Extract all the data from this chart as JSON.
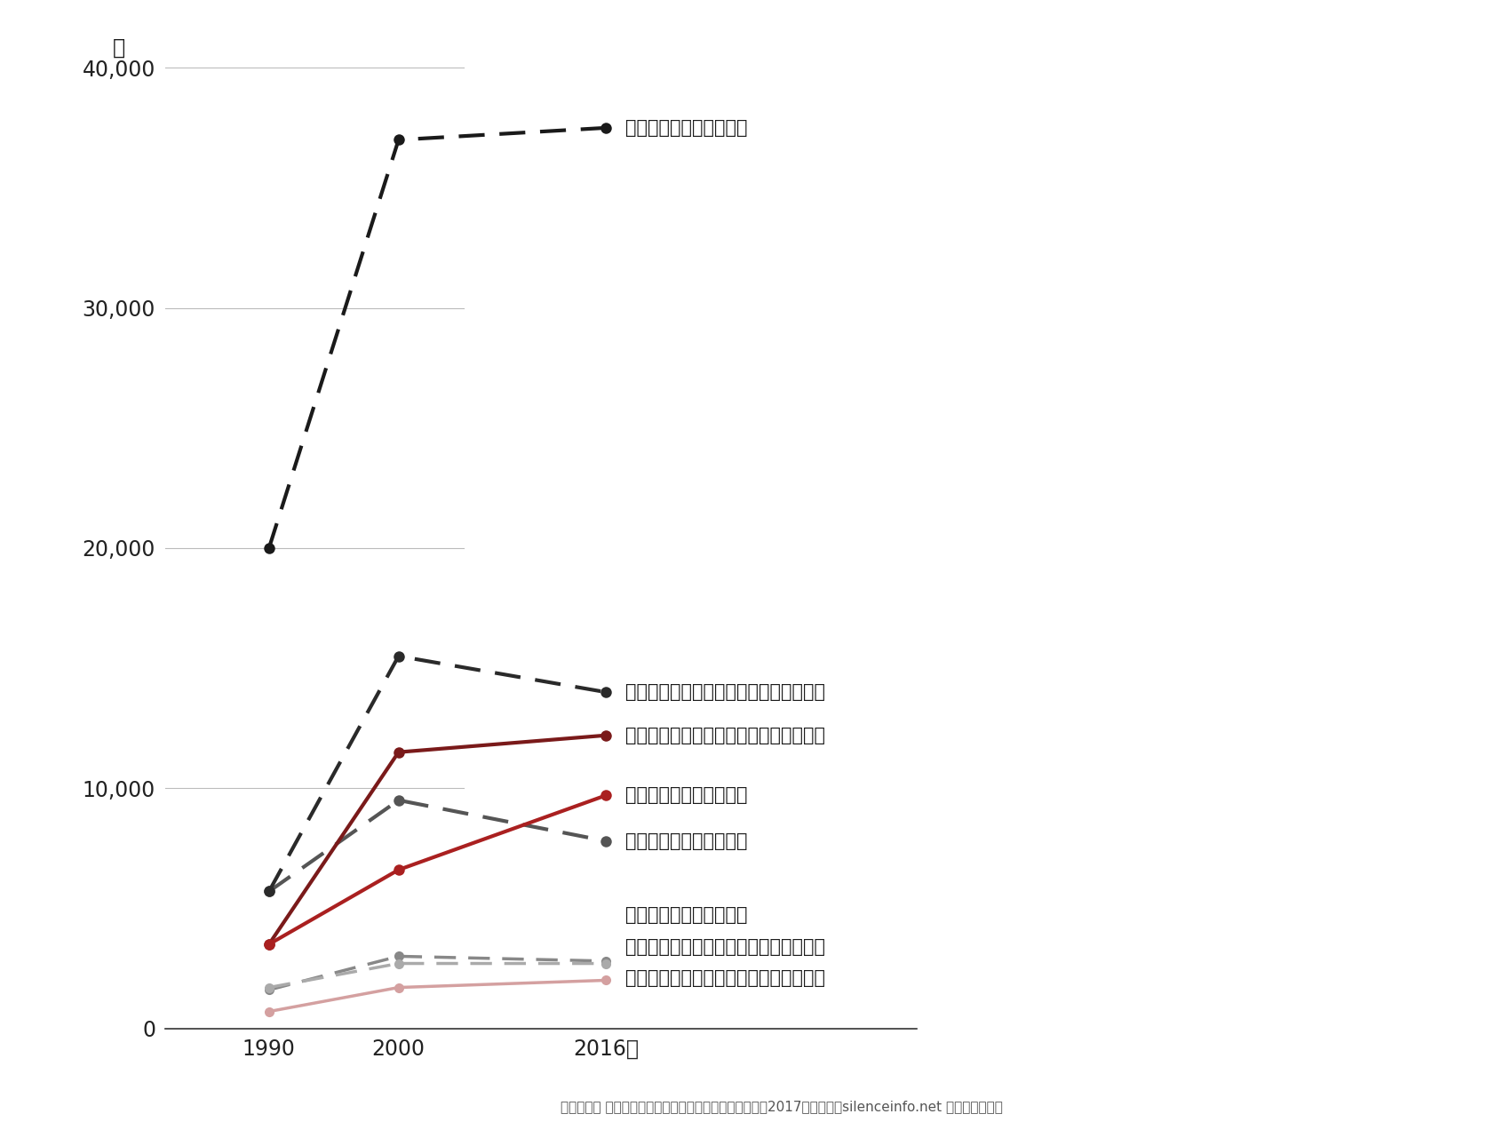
{
  "x": [
    1990,
    2000,
    2016
  ],
  "series": [
    {
      "label": "男性（修士）：自然科学",
      "values": [
        20000,
        37000,
        37500
      ],
      "color": "#1a1a1a",
      "linestyle": "dashed",
      "linewidth": 3.0,
      "markersize": 9,
      "zorder": 5
    },
    {
      "label": "男性（修士）：人文・社会科学・その他",
      "values": [
        5700,
        15500,
        14000
      ],
      "color": "#2a2a2a",
      "linestyle": "dashed",
      "linewidth": 3.0,
      "markersize": 9,
      "zorder": 4
    },
    {
      "label": "女性（修士）：人文・社会科学・その他",
      "values": [
        3500,
        11500,
        12200
      ],
      "color": "#7a1a1a",
      "linestyle": "solid",
      "linewidth": 3.0,
      "markersize": 9,
      "zorder": 4
    },
    {
      "label": "女性（修士）：自然科学",
      "values": [
        3500,
        6600,
        9700
      ],
      "color": "#aa2020",
      "linestyle": "solid",
      "linewidth": 3.0,
      "markersize": 9,
      "zorder": 4
    },
    {
      "label": "男性（博士）：自然科学",
      "values": [
        5700,
        9500,
        7800
      ],
      "color": "#555555",
      "linestyle": "dashed",
      "linewidth": 3.0,
      "markersize": 9,
      "zorder": 3
    },
    {
      "label": "女性（博士）：自然科学",
      "values": [
        1600,
        3000,
        2800
      ],
      "color": "#888888",
      "linestyle": "dashed",
      "linewidth": 2.5,
      "markersize": 8,
      "zorder": 3
    },
    {
      "label": "男性（博士）：人文・社会科学・その他",
      "values": [
        1700,
        2700,
        2700
      ],
      "color": "#aaaaaa",
      "linestyle": "dashed",
      "linewidth": 2.5,
      "markersize": 8,
      "zorder": 3
    },
    {
      "label": "女性（博士）：人文・社会科学・その他",
      "values": [
        700,
        1700,
        2000
      ],
      "color": "#d4a0a0",
      "linestyle": "solid",
      "linewidth": 2.5,
      "markersize": 8,
      "zorder": 2
    }
  ],
  "ylim": [
    0,
    40000
  ],
  "yticks": [
    0,
    10000,
    20000,
    30000,
    40000
  ],
  "ytick_labels": [
    "0",
    "10,000",
    "20,000",
    "30,000",
    "40,000"
  ],
  "xticks": [
    1990,
    2000,
    2016
  ],
  "xtick_labels": [
    "1990",
    "2000",
    "2016年"
  ],
  "ylabel_unit": "人",
  "grid_x_end": 2000,
  "legend_labels_right": [
    "男性（修士）：自然科学",
    "男性（修士）：人文・社会科学・その他",
    "女性（修士）：人文・社会科学・その他",
    "女性（修士）：自然科学",
    "男性（博士）：自然科学",
    "女性（博士）：自然科学",
    "男性（博士）：人文・社会科学・その他",
    "女性（博士）：人文・社会科学・その他"
  ],
  "footer": "文部科学省 科学技術・学術政策研究所、「科学技術指樇2017」を基に、silenceinfo.net が加工・作成。",
  "background_color": "#ffffff",
  "grid_color": "#bbbbbb",
  "label_fontsize": 15,
  "tick_fontsize": 17
}
